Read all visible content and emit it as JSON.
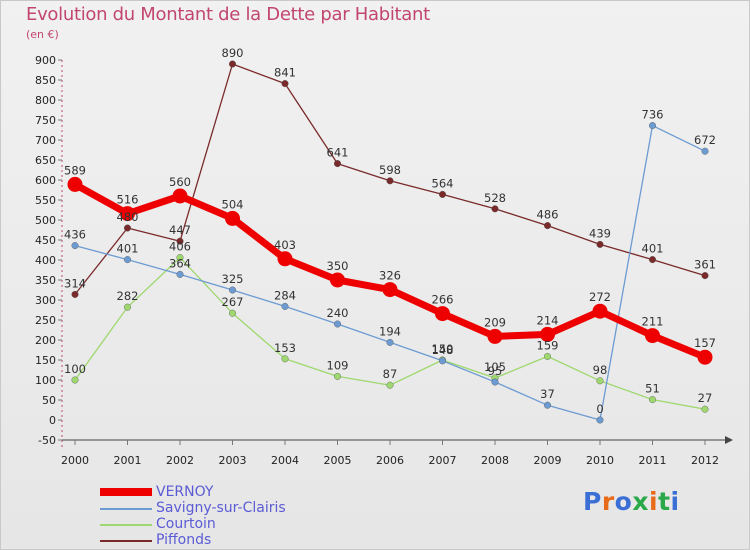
{
  "header": {
    "title": "Evolution du Montant de la Dette par Habitant",
    "unit": "(en €)"
  },
  "logo": {
    "text": "Proxiti",
    "colors": [
      "#3c6fd6",
      "#e86b1a",
      "#3c6fd6",
      "#2aa84a",
      "#e86b1a",
      "#2aa84a",
      "#3c6fd6"
    ]
  },
  "chart_data": {
    "type": "line",
    "title": "Evolution du Montant de la Dette par Habitant",
    "subtitle": "(en €)",
    "xlabel": "",
    "ylabel": "",
    "x": [
      "2000",
      "2001",
      "2002",
      "2003",
      "2004",
      "2005",
      "2006",
      "2007",
      "2008",
      "2009",
      "2010",
      "2011",
      "2012"
    ],
    "ylim": [
      -50,
      900
    ],
    "yticks": [
      -50,
      0,
      50,
      100,
      150,
      200,
      250,
      300,
      350,
      400,
      450,
      500,
      550,
      600,
      650,
      700,
      750,
      800,
      850,
      900
    ],
    "grid": false,
    "legend": "bottom-left",
    "series": [
      {
        "name": "VERNOY",
        "color": "#ee0000",
        "values": [
          589,
          516,
          560,
          504,
          403,
          350,
          326,
          266,
          209,
          214,
          272,
          211,
          157
        ]
      },
      {
        "name": "Savigny-sur-Clairis",
        "color": "#6c9bd2",
        "values": [
          436,
          401,
          364,
          325,
          284,
          240,
          194,
          148,
          95,
          37,
          0,
          736,
          672
        ]
      },
      {
        "name": "Courtoin",
        "color": "#9ed86e",
        "values": [
          100,
          282,
          406,
          267,
          153,
          109,
          87,
          150,
          105,
          159,
          98,
          51,
          27
        ]
      },
      {
        "name": "Piffonds",
        "color": "#7a2a2a",
        "values": [
          314,
          480,
          447,
          890,
          841,
          641,
          598,
          564,
          528,
          486,
          439,
          401,
          361
        ]
      }
    ]
  }
}
